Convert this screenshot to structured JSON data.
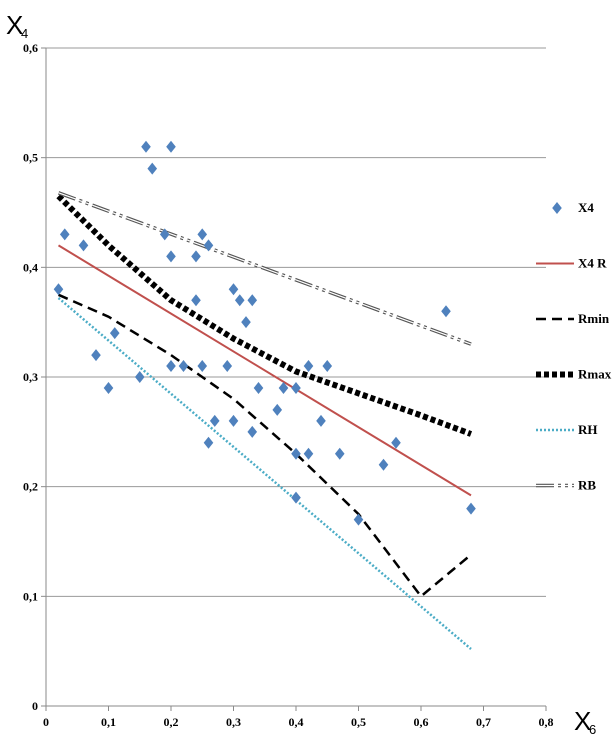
{
  "chart_data": {
    "type": "scatter",
    "xlabel": "X6",
    "ylabel": "X4",
    "xlim": [
      0,
      0.8
    ],
    "ylim": [
      0,
      0.6
    ],
    "xticks": [
      0,
      0.1,
      0.2,
      0.3,
      0.4,
      0.5,
      0.6,
      0.7,
      0.8
    ],
    "yticks": [
      0,
      0.1,
      0.2,
      0.3,
      0.4,
      0.5,
      0.6
    ],
    "xtick_labels": [
      "0",
      "0,1",
      "0,2",
      "0,3",
      "0,4",
      "0,5",
      "0,6",
      "0,7",
      "0,8"
    ],
    "ytick_labels": [
      "0",
      "0,1",
      "0,2",
      "0,3",
      "0,4",
      "0,5",
      "0,6"
    ],
    "grid": "horizontal",
    "legend_position": "right",
    "series": [
      {
        "name": "X4",
        "kind": "scatter",
        "marker": "diamond",
        "color": "#4f81bd",
        "points": [
          [
            0.02,
            0.38
          ],
          [
            0.03,
            0.43
          ],
          [
            0.06,
            0.42
          ],
          [
            0.08,
            0.32
          ],
          [
            0.1,
            0.29
          ],
          [
            0.11,
            0.34
          ],
          [
            0.15,
            0.3
          ],
          [
            0.16,
            0.51
          ],
          [
            0.17,
            0.49
          ],
          [
            0.19,
            0.43
          ],
          [
            0.2,
            0.51
          ],
          [
            0.2,
            0.41
          ],
          [
            0.2,
            0.31
          ],
          [
            0.22,
            0.31
          ],
          [
            0.24,
            0.41
          ],
          [
            0.24,
            0.37
          ],
          [
            0.25,
            0.43
          ],
          [
            0.25,
            0.31
          ],
          [
            0.26,
            0.42
          ],
          [
            0.26,
            0.24
          ],
          [
            0.27,
            0.26
          ],
          [
            0.29,
            0.31
          ],
          [
            0.3,
            0.38
          ],
          [
            0.3,
            0.26
          ],
          [
            0.31,
            0.37
          ],
          [
            0.32,
            0.35
          ],
          [
            0.33,
            0.37
          ],
          [
            0.33,
            0.25
          ],
          [
            0.34,
            0.29
          ],
          [
            0.37,
            0.27
          ],
          [
            0.38,
            0.29
          ],
          [
            0.4,
            0.29
          ],
          [
            0.4,
            0.23
          ],
          [
            0.4,
            0.19
          ],
          [
            0.42,
            0.31
          ],
          [
            0.42,
            0.23
          ],
          [
            0.44,
            0.26
          ],
          [
            0.45,
            0.31
          ],
          [
            0.47,
            0.23
          ],
          [
            0.5,
            0.17
          ],
          [
            0.54,
            0.22
          ],
          [
            0.56,
            0.24
          ],
          [
            0.64,
            0.36
          ],
          [
            0.68,
            0.18
          ]
        ]
      },
      {
        "name": "X4 R",
        "kind": "line",
        "style": "solid",
        "color": "#c0504d",
        "points": [
          [
            0.02,
            0.42
          ],
          [
            0.68,
            0.192
          ]
        ]
      },
      {
        "name": "Rmin",
        "kind": "line",
        "style": "dashed",
        "color": "#000000",
        "points": [
          [
            0.02,
            0.375
          ],
          [
            0.1,
            0.355
          ],
          [
            0.2,
            0.32
          ],
          [
            0.3,
            0.28
          ],
          [
            0.4,
            0.23
          ],
          [
            0.5,
            0.175
          ],
          [
            0.6,
            0.1
          ],
          [
            0.68,
            0.138
          ]
        ]
      },
      {
        "name": "Rmax",
        "kind": "line",
        "style": "thick-dotted",
        "color": "#000000",
        "points": [
          [
            0.02,
            0.465
          ],
          [
            0.1,
            0.42
          ],
          [
            0.2,
            0.37
          ],
          [
            0.3,
            0.335
          ],
          [
            0.4,
            0.305
          ],
          [
            0.5,
            0.285
          ],
          [
            0.6,
            0.265
          ],
          [
            0.68,
            0.248
          ]
        ]
      },
      {
        "name": "RH",
        "kind": "line",
        "style": "dotted",
        "color": "#4bacc6",
        "points": [
          [
            0.02,
            0.372
          ],
          [
            0.68,
            0.052
          ]
        ]
      },
      {
        "name": "RB",
        "kind": "line",
        "style": "double-dash-dot",
        "color": "#555555",
        "points": [
          [
            0.02,
            0.468
          ],
          [
            0.68,
            0.33
          ]
        ]
      }
    ]
  }
}
